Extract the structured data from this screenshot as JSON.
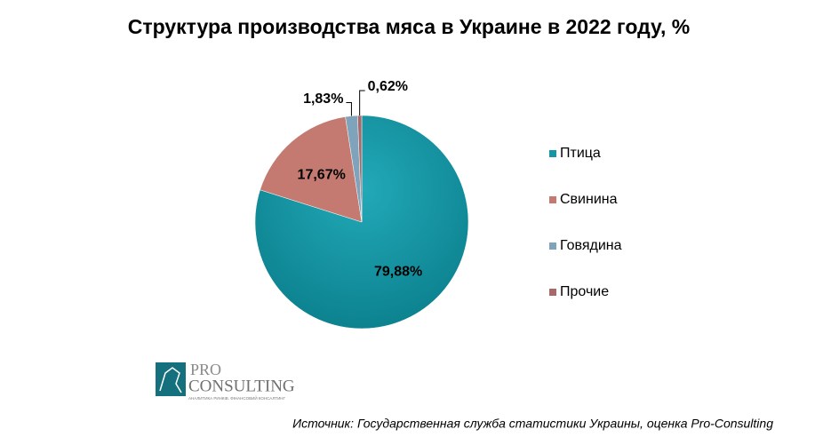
{
  "chart_data": {
    "type": "pie",
    "title": "Структура производства мяса в Украине в 2022 году, %",
    "categories": [
      "Птица",
      "Свинина",
      "Говядина",
      "Прочие"
    ],
    "values": [
      79.88,
      17.67,
      1.83,
      0.62
    ],
    "value_labels": [
      "79,88%",
      "17,67%",
      "1,83%",
      "0,62%"
    ],
    "colors": [
      "#1596a5",
      "#c47a70",
      "#7ea3bb",
      "#a86a68"
    ],
    "legend": "right"
  },
  "source": "Источник: Государственная служба статистики Украины, оценка Pro-Consulting",
  "logo": {
    "line1": "PRO",
    "line2": "CONSULTING",
    "tagline": "АНАЛИТИКА РИНКІВ. ФІНАНСОВИЙ КОНСАЛТИНГ"
  }
}
